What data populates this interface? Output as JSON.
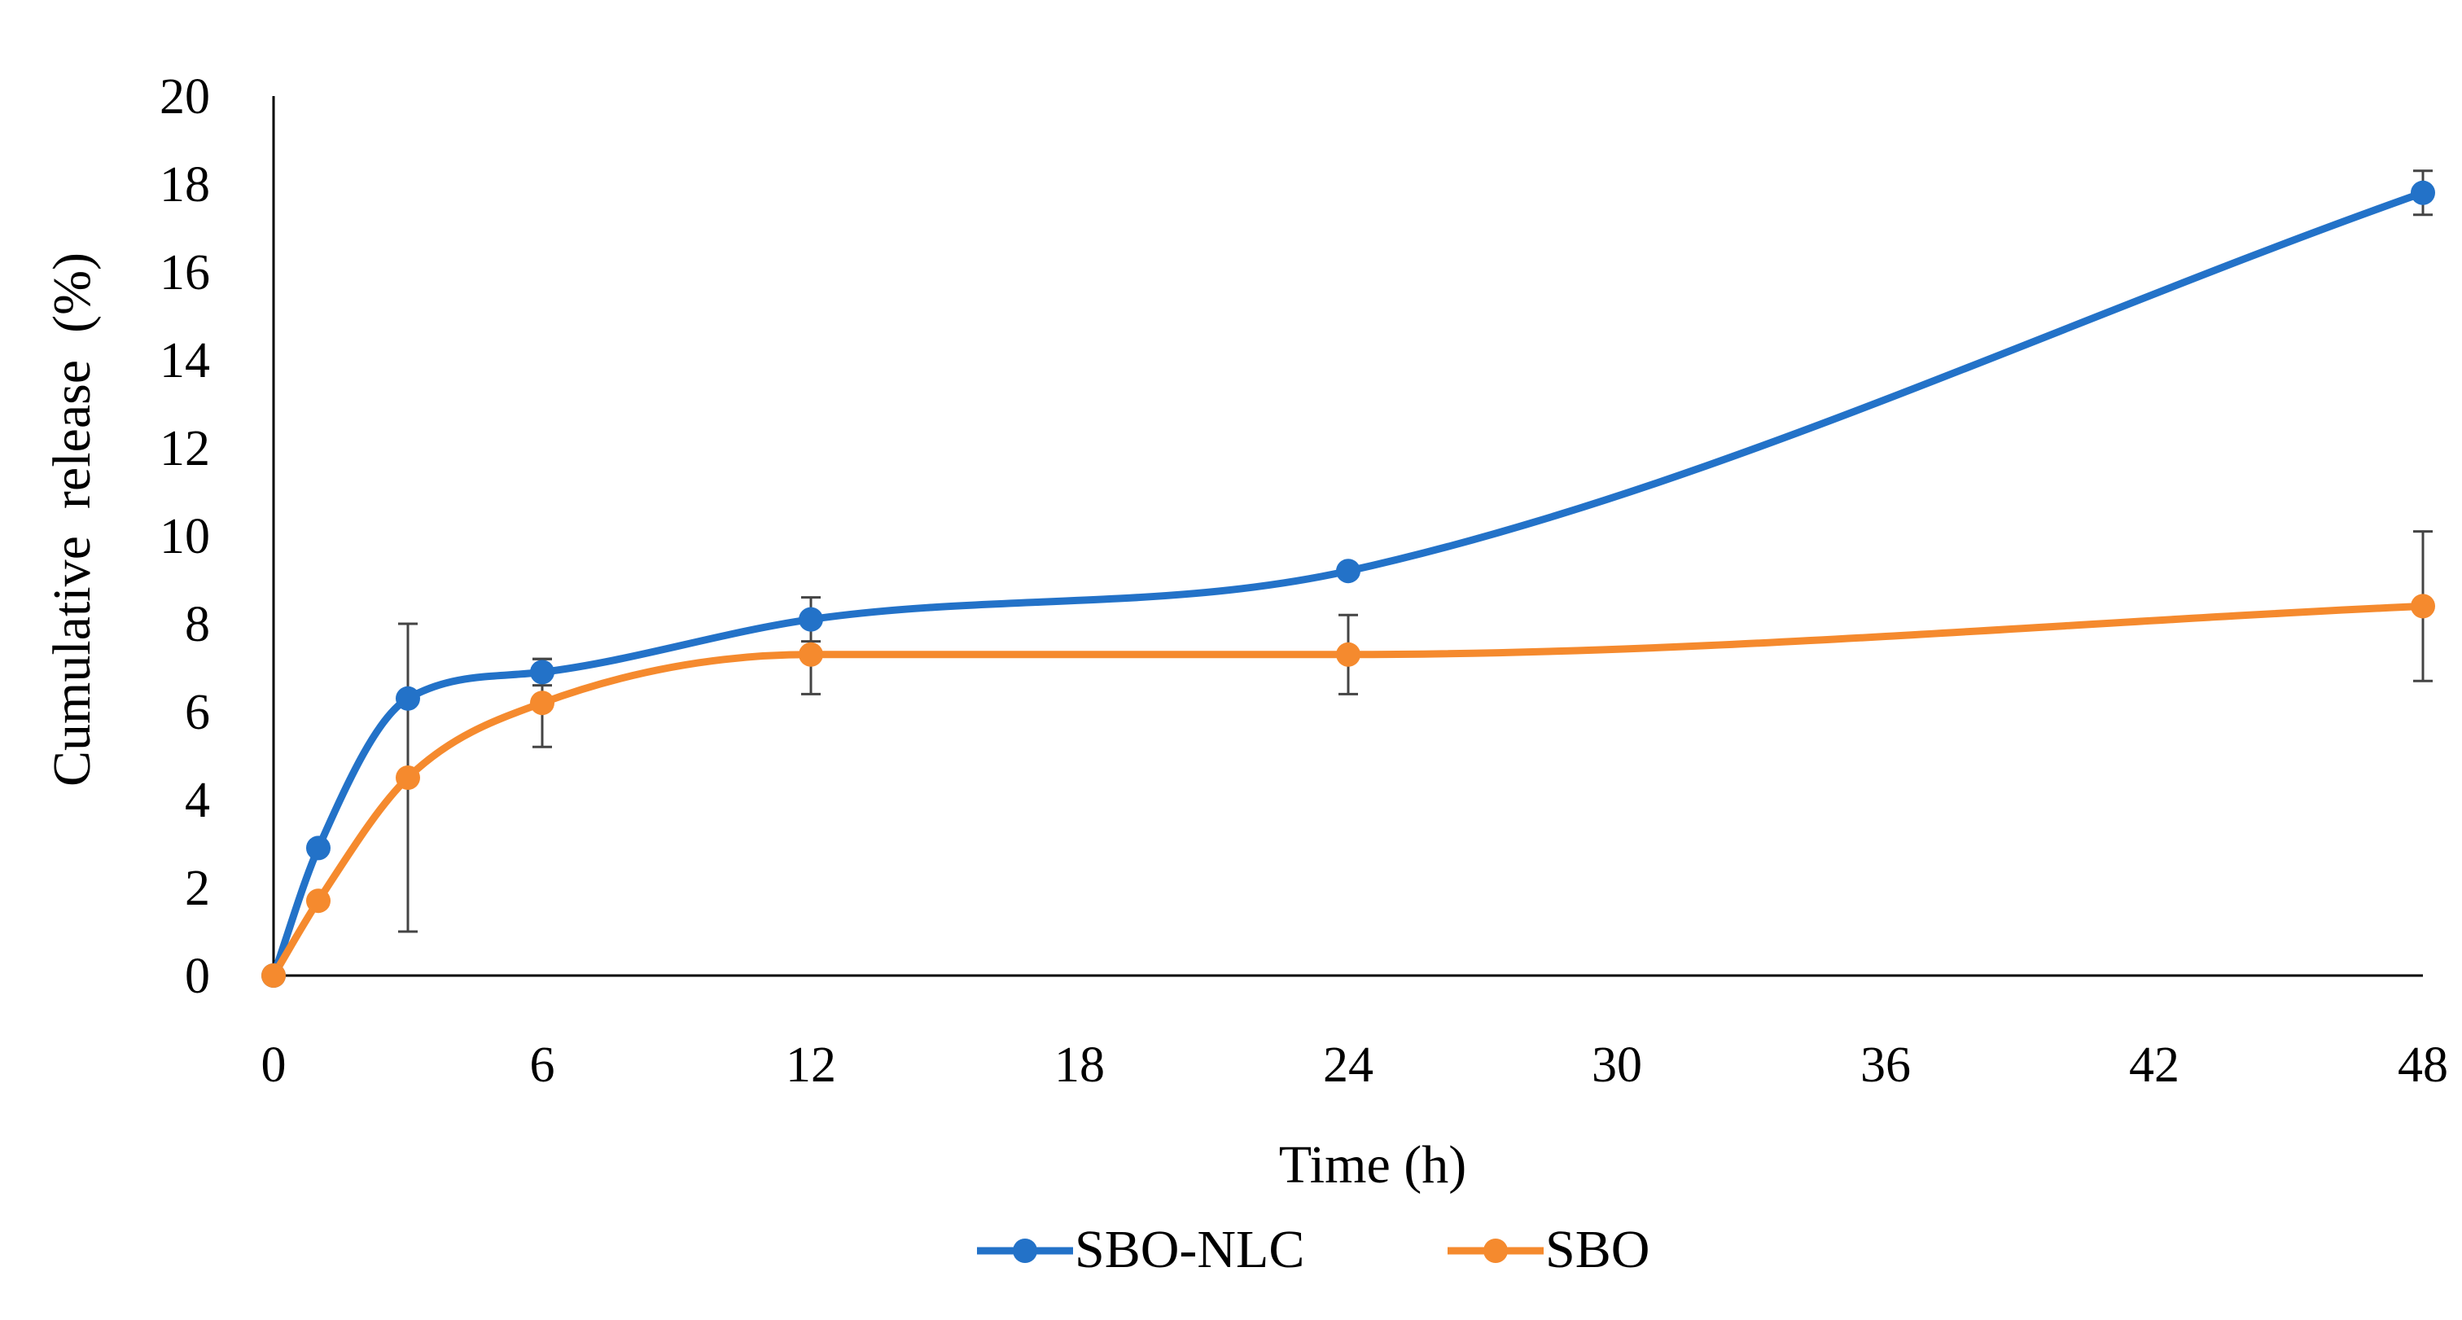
{
  "chart_data": {
    "type": "line",
    "title": "",
    "xlabel": "Time (h)",
    "ylabel": "Cumulative  release  (%)",
    "xlim": [
      0,
      48
    ],
    "ylim": [
      0,
      20
    ],
    "x_ticks": [
      0,
      6,
      12,
      18,
      24,
      30,
      36,
      42,
      48
    ],
    "y_ticks": [
      0,
      2,
      4,
      6,
      8,
      10,
      12,
      14,
      16,
      18,
      20
    ],
    "grid": false,
    "smooth": true,
    "legend_position": "bottom-center",
    "series": [
      {
        "name": "SBO-NLC",
        "color": "#2372c8",
        "x": [
          0,
          1,
          3,
          6,
          12,
          24,
          48
        ],
        "values": [
          0,
          2.9,
          6.3,
          6.9,
          8.1,
          9.2,
          17.8
        ],
        "error": [
          0,
          0,
          0,
          0.3,
          0.5,
          0,
          0.5
        ]
      },
      {
        "name": "SBO",
        "color": "#f58a2e",
        "x": [
          0,
          1,
          3,
          6,
          12,
          24,
          48
        ],
        "values": [
          0,
          1.7,
          4.5,
          6.2,
          7.3,
          7.3,
          8.4
        ],
        "error": [
          0,
          0,
          3.5,
          1.0,
          0.9,
          0.9,
          1.7
        ]
      }
    ]
  }
}
